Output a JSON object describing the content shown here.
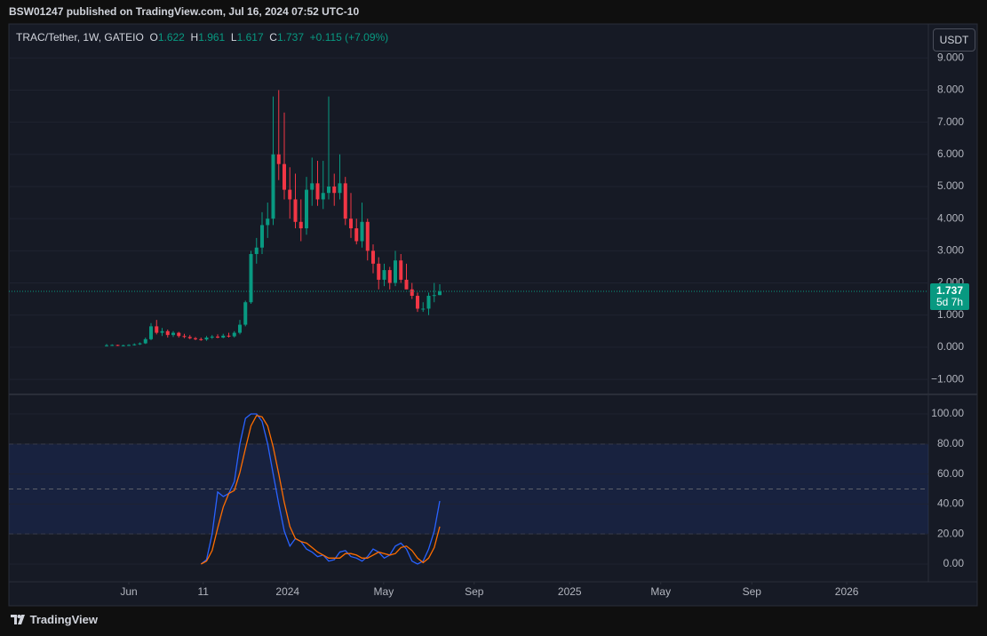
{
  "header": "BSW01247 published on TradingView.com, Jul 16, 2024 07:52 UTC-10",
  "currency": "USDT",
  "footer": "TradingView",
  "chart_data": [
    {
      "type": "candlestick",
      "title": "TRAC/Tether, 1W, GATEIO",
      "ohlc_labels": [
        "O",
        "H",
        "L",
        "C"
      ],
      "change": "+0.115 (+7.09%)",
      "countdown": "5d 7h",
      "up_color": "#089981",
      "down_color": "#f23645",
      "open": [
        0.05,
        0.06,
        0.07,
        0.05,
        0.06,
        0.07,
        0.09,
        0.12,
        0.25,
        0.65,
        0.45,
        0.5,
        0.38,
        0.45,
        0.35,
        0.32,
        0.28,
        0.25,
        0.24,
        0.3,
        0.33,
        0.3,
        0.36,
        0.34,
        0.45,
        0.7,
        1.4,
        2.9,
        3.1,
        3.8,
        4.0,
        6.0,
        5.7,
        4.9,
        4.6,
        3.9,
        3.7,
        4.9,
        5.1,
        4.6,
        4.8,
        5.0,
        4.8,
        5.1,
        4.0,
        3.7,
        3.3,
        3.9,
        3.0,
        2.6,
        2.1,
        2.4,
        2.0,
        2.7,
        2.1,
        1.8,
        1.6,
        1.2,
        1.2,
        1.6,
        1.622
      ],
      "high": [
        0.1,
        0.09,
        0.08,
        0.08,
        0.09,
        0.12,
        0.15,
        0.3,
        0.75,
        0.85,
        0.6,
        0.55,
        0.5,
        0.48,
        0.42,
        0.38,
        0.32,
        0.3,
        0.35,
        0.38,
        0.4,
        0.42,
        0.45,
        0.5,
        0.85,
        1.45,
        3.0,
        3.4,
        4.2,
        4.5,
        7.8,
        8.0,
        7.3,
        5.6,
        5.4,
        4.6,
        5.3,
        5.9,
        5.8,
        5.8,
        7.8,
        5.4,
        6.0,
        5.3,
        4.8,
        4.0,
        4.5,
        4.0,
        3.2,
        2.8,
        2.6,
        2.5,
        3.0,
        2.9,
        2.6,
        2.0,
        1.7,
        1.4,
        1.7,
        2.0,
        1.961
      ],
      "low": [
        0.02,
        0.04,
        0.04,
        0.03,
        0.04,
        0.05,
        0.07,
        0.1,
        0.22,
        0.4,
        0.35,
        0.3,
        0.32,
        0.3,
        0.28,
        0.25,
        0.22,
        0.2,
        0.2,
        0.26,
        0.28,
        0.28,
        0.3,
        0.3,
        0.4,
        0.65,
        1.35,
        2.6,
        2.9,
        3.4,
        3.8,
        5.2,
        4.6,
        4.0,
        3.7,
        3.3,
        3.5,
        4.4,
        4.4,
        4.3,
        4.6,
        4.4,
        4.6,
        3.8,
        3.4,
        3.2,
        3.1,
        2.7,
        2.3,
        1.8,
        1.9,
        1.8,
        1.9,
        2.0,
        1.8,
        1.5,
        1.1,
        1.1,
        1.0,
        1.4,
        1.617
      ],
      "close": [
        0.06,
        0.07,
        0.05,
        0.06,
        0.07,
        0.09,
        0.12,
        0.25,
        0.65,
        0.45,
        0.5,
        0.38,
        0.45,
        0.35,
        0.32,
        0.28,
        0.25,
        0.24,
        0.3,
        0.33,
        0.3,
        0.36,
        0.34,
        0.45,
        0.7,
        1.4,
        2.9,
        3.1,
        3.8,
        4.0,
        6.0,
        5.7,
        4.9,
        4.6,
        3.9,
        3.7,
        4.9,
        5.1,
        4.6,
        4.8,
        5.0,
        4.8,
        5.1,
        4.0,
        3.7,
        3.3,
        3.9,
        3.0,
        2.6,
        2.1,
        2.4,
        2.0,
        2.7,
        2.1,
        1.8,
        1.6,
        1.2,
        1.2,
        1.6,
        1.622,
        1.737
      ],
      "xlim": [
        -17.6,
        148
      ],
      "ylim": [
        -1.44,
        10.03
      ],
      "yticks": [
        {
          "value": -1,
          "label": "−1.000"
        },
        {
          "value": 0,
          "label": "0.000"
        },
        {
          "value": 1,
          "label": "1.000"
        },
        {
          "value": 2,
          "label": "2.000"
        },
        {
          "value": 3,
          "label": "3.000"
        },
        {
          "value": 4,
          "label": "4.000"
        },
        {
          "value": 5,
          "label": "5.000"
        },
        {
          "value": 6,
          "label": "6.000"
        },
        {
          "value": 7,
          "label": "7.000"
        },
        {
          "value": 8,
          "label": "8.000"
        },
        {
          "value": 9,
          "label": "9.000"
        }
      ]
    },
    {
      "type": "line",
      "series": [
        {
          "color": "#2962ff",
          "values": [
            null,
            null,
            null,
            null,
            null,
            null,
            null,
            null,
            null,
            null,
            null,
            null,
            null,
            null,
            null,
            null,
            null,
            0,
            3,
            20,
            48,
            45,
            47,
            55,
            80,
            97,
            100,
            100,
            95,
            80,
            60,
            40,
            22,
            12,
            17,
            15,
            10,
            8,
            5,
            6,
            2,
            3,
            8,
            9,
            5,
            4,
            2,
            5,
            10,
            8,
            4,
            6,
            12,
            14,
            10,
            2,
            0,
            2,
            10,
            22,
            42
          ]
        },
        {
          "color": "#ff6d00",
          "values": [
            null,
            null,
            null,
            null,
            null,
            null,
            null,
            null,
            null,
            null,
            null,
            null,
            null,
            null,
            null,
            null,
            null,
            0,
            2,
            9,
            24,
            38,
            47,
            49,
            61,
            77,
            92,
            99,
            98,
            92,
            78,
            60,
            41,
            25,
            17,
            15,
            14,
            11,
            8,
            6,
            4,
            4,
            4,
            7,
            7,
            6,
            4,
            4,
            6,
            8,
            7,
            6,
            7,
            11,
            12,
            9,
            4,
            1,
            4,
            11,
            25
          ]
        }
      ],
      "bands": [
        20,
        80
      ],
      "midline": 50,
      "xlim": [
        -17.6,
        148
      ],
      "ylim": [
        -11.8,
        112.4
      ],
      "yticks": [
        {
          "value": 0,
          "label": "0.00"
        },
        {
          "value": 20,
          "label": "20.00"
        },
        {
          "value": 40,
          "label": "40.00"
        },
        {
          "value": 60,
          "label": "60.00"
        },
        {
          "value": 80,
          "label": "80.00"
        },
        {
          "value": 100,
          "label": "100.00"
        }
      ],
      "xticks": [
        {
          "value": 4,
          "label": "Jun"
        },
        {
          "value": 17.4,
          "label": "11"
        },
        {
          "value": 32.6,
          "label": "2024"
        },
        {
          "value": 49.9,
          "label": "May"
        },
        {
          "value": 66.2,
          "label": "Sep"
        },
        {
          "value": 83.4,
          "label": "2025"
        },
        {
          "value": 99.8,
          "label": "May"
        },
        {
          "value": 116.2,
          "label": "Sep"
        },
        {
          "value": 133.3,
          "label": "2026"
        }
      ]
    }
  ]
}
